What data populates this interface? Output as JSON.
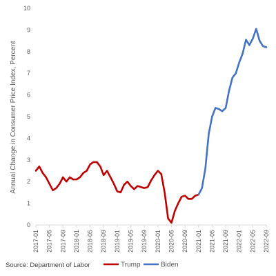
{
  "source_note": "Source: Department of Labor",
  "chart_data": {
    "type": "line",
    "title": "",
    "xlabel": "",
    "ylabel": "Annual Change in Consumer Price Index, Percent",
    "ylim": [
      0,
      10
    ],
    "yticks": [
      0,
      1,
      2,
      3,
      4,
      5,
      6,
      7,
      8,
      9,
      10
    ],
    "grid": false,
    "legend_position": "bottom",
    "x_tick_labels": [
      "2017-01",
      "2017-05",
      "2017-09",
      "2018-01",
      "2018-05",
      "2018-09",
      "2019-01",
      "2019-05",
      "2019-09",
      "2020-01",
      "2020-05",
      "2020-09",
      "2021-01",
      "2021-05",
      "2021-09",
      "2022-01",
      "2022-05",
      "2022-09"
    ],
    "series": [
      {
        "name": "Trump",
        "color": "#c00000",
        "x": [
          "2017-01",
          "2017-02",
          "2017-03",
          "2017-04",
          "2017-05",
          "2017-06",
          "2017-07",
          "2017-08",
          "2017-09",
          "2017-10",
          "2017-11",
          "2017-12",
          "2018-01",
          "2018-02",
          "2018-03",
          "2018-04",
          "2018-05",
          "2018-06",
          "2018-07",
          "2018-08",
          "2018-09",
          "2018-10",
          "2018-11",
          "2018-12",
          "2019-01",
          "2019-02",
          "2019-03",
          "2019-04",
          "2019-05",
          "2019-06",
          "2019-07",
          "2019-08",
          "2019-09",
          "2019-10",
          "2019-11",
          "2019-12",
          "2020-01",
          "2020-02",
          "2020-03",
          "2020-04",
          "2020-05",
          "2020-06",
          "2020-07",
          "2020-08",
          "2020-09",
          "2020-10",
          "2020-11",
          "2020-12",
          "2021-01"
        ],
        "values": [
          2.5,
          2.7,
          2.4,
          2.2,
          1.9,
          1.6,
          1.7,
          1.9,
          2.2,
          2.0,
          2.2,
          2.1,
          2.1,
          2.2,
          2.4,
          2.5,
          2.8,
          2.9,
          2.9,
          2.7,
          2.3,
          2.5,
          2.2,
          1.9,
          1.55,
          1.5,
          1.85,
          2.0,
          1.8,
          1.65,
          1.8,
          1.75,
          1.7,
          1.75,
          2.05,
          2.3,
          2.5,
          2.35,
          1.5,
          0.3,
          0.1,
          0.65,
          1.0,
          1.3,
          1.35,
          1.2,
          1.2,
          1.35,
          1.4
        ]
      },
      {
        "name": "Biden",
        "color": "#4472c4",
        "x": [
          "2021-01",
          "2021-02",
          "2021-03",
          "2021-04",
          "2021-05",
          "2021-06",
          "2021-07",
          "2021-08",
          "2021-09",
          "2021-10",
          "2021-11",
          "2021-12",
          "2022-01",
          "2022-02",
          "2022-03",
          "2022-04",
          "2022-05",
          "2022-06",
          "2022-07",
          "2022-08",
          "2022-09"
        ],
        "values": [
          1.4,
          1.7,
          2.6,
          4.2,
          5.0,
          5.4,
          5.35,
          5.25,
          5.4,
          6.2,
          6.8,
          7.0,
          7.5,
          7.9,
          8.55,
          8.3,
          8.6,
          9.05,
          8.5,
          8.25,
          8.2
        ]
      }
    ]
  }
}
